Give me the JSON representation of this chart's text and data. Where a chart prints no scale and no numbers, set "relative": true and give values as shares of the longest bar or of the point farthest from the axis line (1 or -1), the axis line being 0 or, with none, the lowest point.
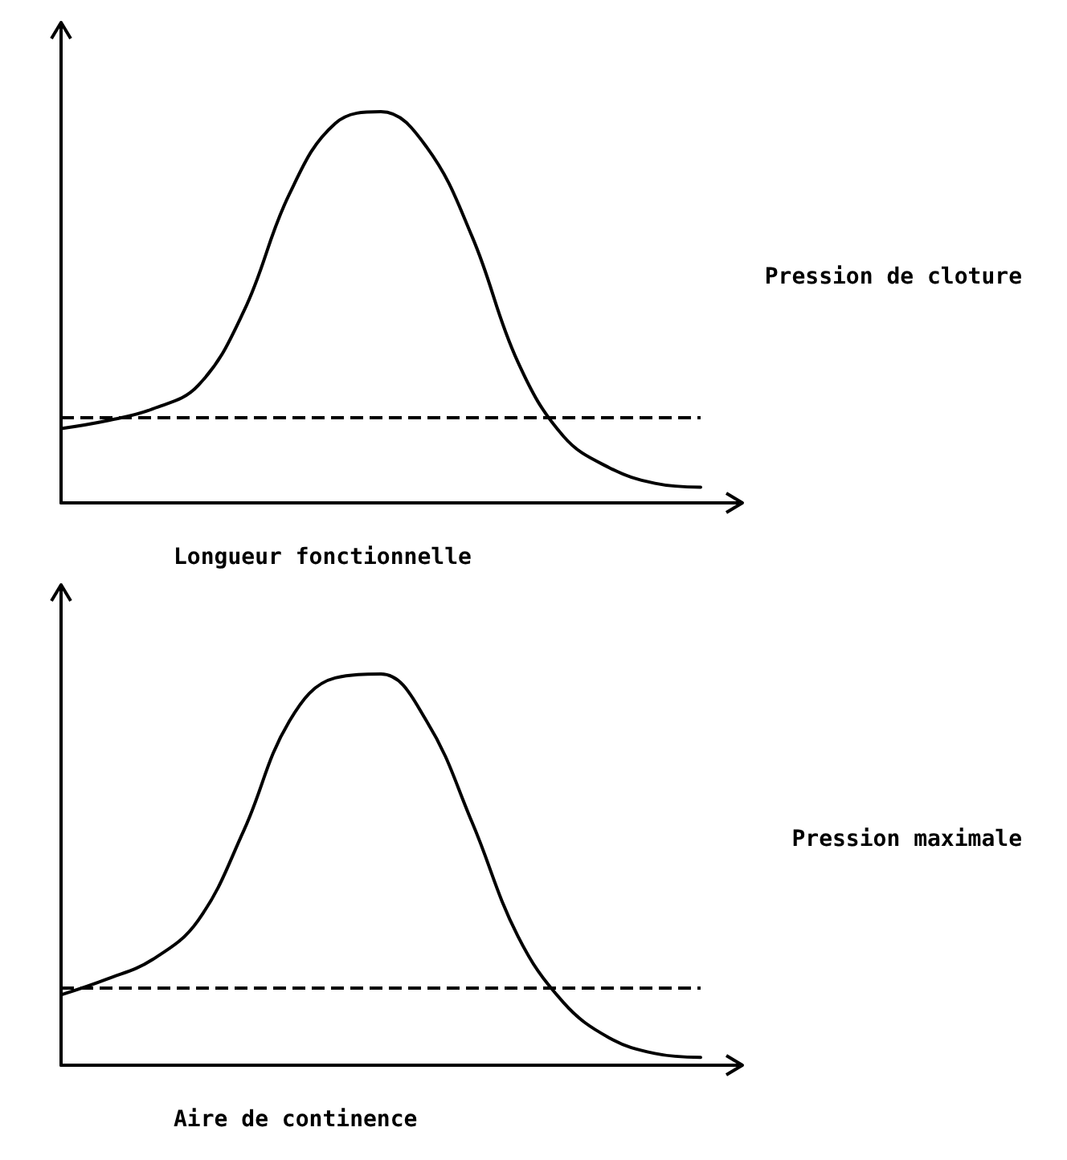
{
  "chart_data": [
    {
      "type": "line",
      "relative": true,
      "categories": [
        null,
        null,
        null,
        null,
        null,
        null,
        null,
        null,
        null,
        null,
        null,
        null,
        null,
        null,
        null
      ],
      "series": [
        {
          "color": "#000000",
          "values": [
            0.19,
            0.21,
            0.24,
            0.3,
            0.49,
            0.79,
            0.97,
            1,
            0.91,
            0.68,
            0.36,
            0.17,
            0.09,
            0.05,
            0.04
          ]
        }
      ],
      "marker": "none",
      "line_style": "solid",
      "ref_lines": [
        {
          "axis": "y",
          "value": 0.22,
          "line_style": "dashed",
          "color": "#000000"
        }
      ],
      "annotations": [
        "Pression de cloture",
        "Longueur fonctionnelle"
      ]
    },
    {
      "type": "line",
      "relative": true,
      "categories": [
        null,
        null,
        null,
        null,
        null,
        null,
        null,
        null,
        null,
        null,
        null,
        null,
        null,
        null,
        null
      ],
      "series": [
        {
          "color": "#000000",
          "values": [
            0.18,
            0.22,
            0.27,
            0.37,
            0.6,
            0.88,
            0.99,
            1,
            0.88,
            0.62,
            0.33,
            0.16,
            0.07,
            0.03,
            0.02
          ]
        }
      ],
      "marker": "none",
      "line_style": "solid",
      "ref_lines": [
        {
          "axis": "y",
          "value": 0.2,
          "line_style": "dashed",
          "color": "#000000"
        }
      ],
      "annotations": [
        "Pression maximale",
        "Aire de continence"
      ]
    }
  ]
}
